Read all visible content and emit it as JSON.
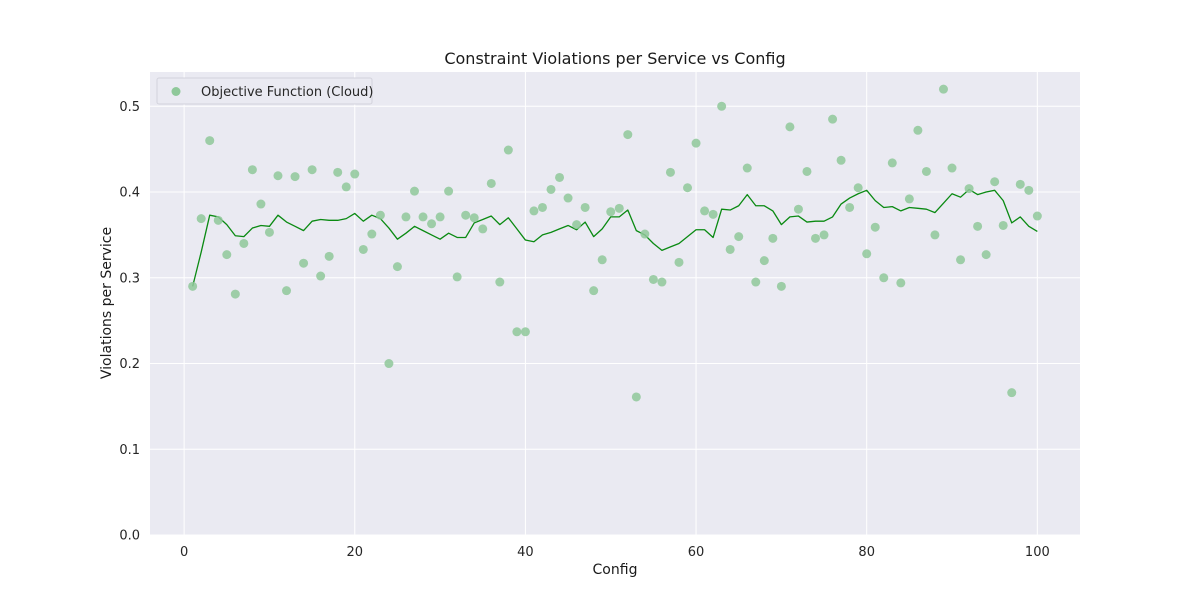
{
  "chart_data": {
    "type": "scatter",
    "title": "Constraint Violations per Service vs Config",
    "xlabel": "Config",
    "ylabel": "Violations per Service",
    "xlim": [
      -4,
      105
    ],
    "ylim": [
      0,
      0.54
    ],
    "xticks": [
      0,
      20,
      40,
      60,
      80,
      100
    ],
    "yticks": [
      0.0,
      0.1,
      0.2,
      0.3,
      0.4,
      0.5
    ],
    "xtick_labels": [
      "0",
      "20",
      "40",
      "60",
      "80",
      "100"
    ],
    "ytick_labels": [
      "0.0",
      "0.1",
      "0.2",
      "0.3",
      "0.4",
      "0.5"
    ],
    "grid": true,
    "legend_position": "top-left",
    "series": [
      {
        "name": "Objective Function (Cloud)",
        "kind": "scatter",
        "color": "#8fc89a",
        "x": [
          1,
          2,
          3,
          4,
          5,
          6,
          7,
          8,
          9,
          10,
          11,
          12,
          13,
          14,
          15,
          16,
          17,
          18,
          19,
          20,
          21,
          22,
          23,
          24,
          25,
          26,
          27,
          28,
          29,
          30,
          31,
          32,
          33,
          34,
          35,
          36,
          37,
          38,
          39,
          40,
          41,
          42,
          43,
          44,
          45,
          46,
          47,
          48,
          49,
          50,
          51,
          52,
          53,
          54,
          55,
          56,
          57,
          58,
          59,
          60,
          61,
          62,
          63,
          64,
          65,
          66,
          67,
          68,
          69,
          70,
          71,
          72,
          73,
          74,
          75,
          76,
          77,
          78,
          79,
          80,
          81,
          82,
          83,
          84,
          85,
          86,
          87,
          88,
          89,
          90,
          91,
          92,
          93,
          94,
          95,
          96,
          97,
          98,
          99,
          100
        ],
        "y": [
          0.29,
          0.369,
          0.46,
          0.367,
          0.327,
          0.281,
          0.34,
          0.426,
          0.386,
          0.353,
          0.419,
          0.285,
          0.418,
          0.317,
          0.426,
          0.302,
          0.325,
          0.423,
          0.406,
          0.421,
          0.333,
          0.351,
          0.373,
          0.2,
          0.313,
          0.371,
          0.401,
          0.371,
          0.363,
          0.371,
          0.401,
          0.301,
          0.373,
          0.37,
          0.357,
          0.41,
          0.295,
          0.449,
          0.237,
          0.237,
          0.378,
          0.382,
          0.403,
          0.417,
          0.393,
          0.362,
          0.382,
          0.285,
          0.321,
          0.377,
          0.381,
          0.467,
          0.161,
          0.351,
          0.298,
          0.295,
          0.423,
          0.318,
          0.405,
          0.457,
          0.378,
          0.374,
          0.5,
          0.333,
          0.348,
          0.428,
          0.295,
          0.32,
          0.346,
          0.29,
          0.476,
          0.38,
          0.424,
          0.346,
          0.35,
          0.485,
          0.437,
          0.382,
          0.405,
          0.328,
          0.359,
          0.3,
          0.434,
          0.294,
          0.392,
          0.472,
          0.424,
          0.35,
          0.52,
          0.428,
          0.321,
          0.404,
          0.36,
          0.327,
          0.412,
          0.361,
          0.166,
          0.409,
          0.402,
          0.372
        ]
      },
      {
        "name": "",
        "kind": "line",
        "color": "#0a8a12",
        "x": [
          1,
          2,
          3,
          4,
          5,
          6,
          7,
          8,
          9,
          10,
          11,
          12,
          13,
          14,
          15,
          16,
          17,
          18,
          19,
          20,
          21,
          22,
          23,
          24,
          25,
          26,
          27,
          28,
          29,
          30,
          31,
          32,
          33,
          34,
          35,
          36,
          37,
          38,
          39,
          40,
          41,
          42,
          43,
          44,
          45,
          46,
          47,
          48,
          49,
          50,
          51,
          52,
          53,
          54,
          55,
          56,
          57,
          58,
          59,
          60,
          61,
          62,
          63,
          64,
          65,
          66,
          67,
          68,
          69,
          70,
          71,
          72,
          73,
          74,
          75,
          76,
          77,
          78,
          79,
          80,
          81,
          82,
          83,
          84,
          85,
          86,
          87,
          88,
          89,
          90,
          91,
          92,
          93,
          94,
          95,
          96,
          97,
          98,
          99,
          100
        ],
        "y": [
          0.29,
          0.33,
          0.373,
          0.371,
          0.362,
          0.349,
          0.348,
          0.358,
          0.361,
          0.36,
          0.373,
          0.365,
          0.36,
          0.355,
          0.366,
          0.368,
          0.367,
          0.367,
          0.369,
          0.375,
          0.366,
          0.373,
          0.369,
          0.358,
          0.345,
          0.352,
          0.36,
          0.355,
          0.35,
          0.345,
          0.352,
          0.347,
          0.347,
          0.364,
          0.368,
          0.372,
          0.362,
          0.37,
          0.357,
          0.344,
          0.342,
          0.35,
          0.353,
          0.357,
          0.361,
          0.356,
          0.365,
          0.348,
          0.357,
          0.371,
          0.371,
          0.379,
          0.355,
          0.35,
          0.34,
          0.332,
          0.336,
          0.34,
          0.348,
          0.356,
          0.356,
          0.347,
          0.38,
          0.379,
          0.384,
          0.397,
          0.384,
          0.384,
          0.378,
          0.362,
          0.371,
          0.372,
          0.365,
          0.366,
          0.366,
          0.371,
          0.386,
          0.393,
          0.398,
          0.402,
          0.39,
          0.382,
          0.383,
          0.378,
          0.382,
          0.381,
          0.38,
          0.376,
          0.387,
          0.398,
          0.394,
          0.403,
          0.397,
          0.4,
          0.402,
          0.39,
          0.364,
          0.371,
          0.36,
          0.354
        ]
      }
    ]
  }
}
